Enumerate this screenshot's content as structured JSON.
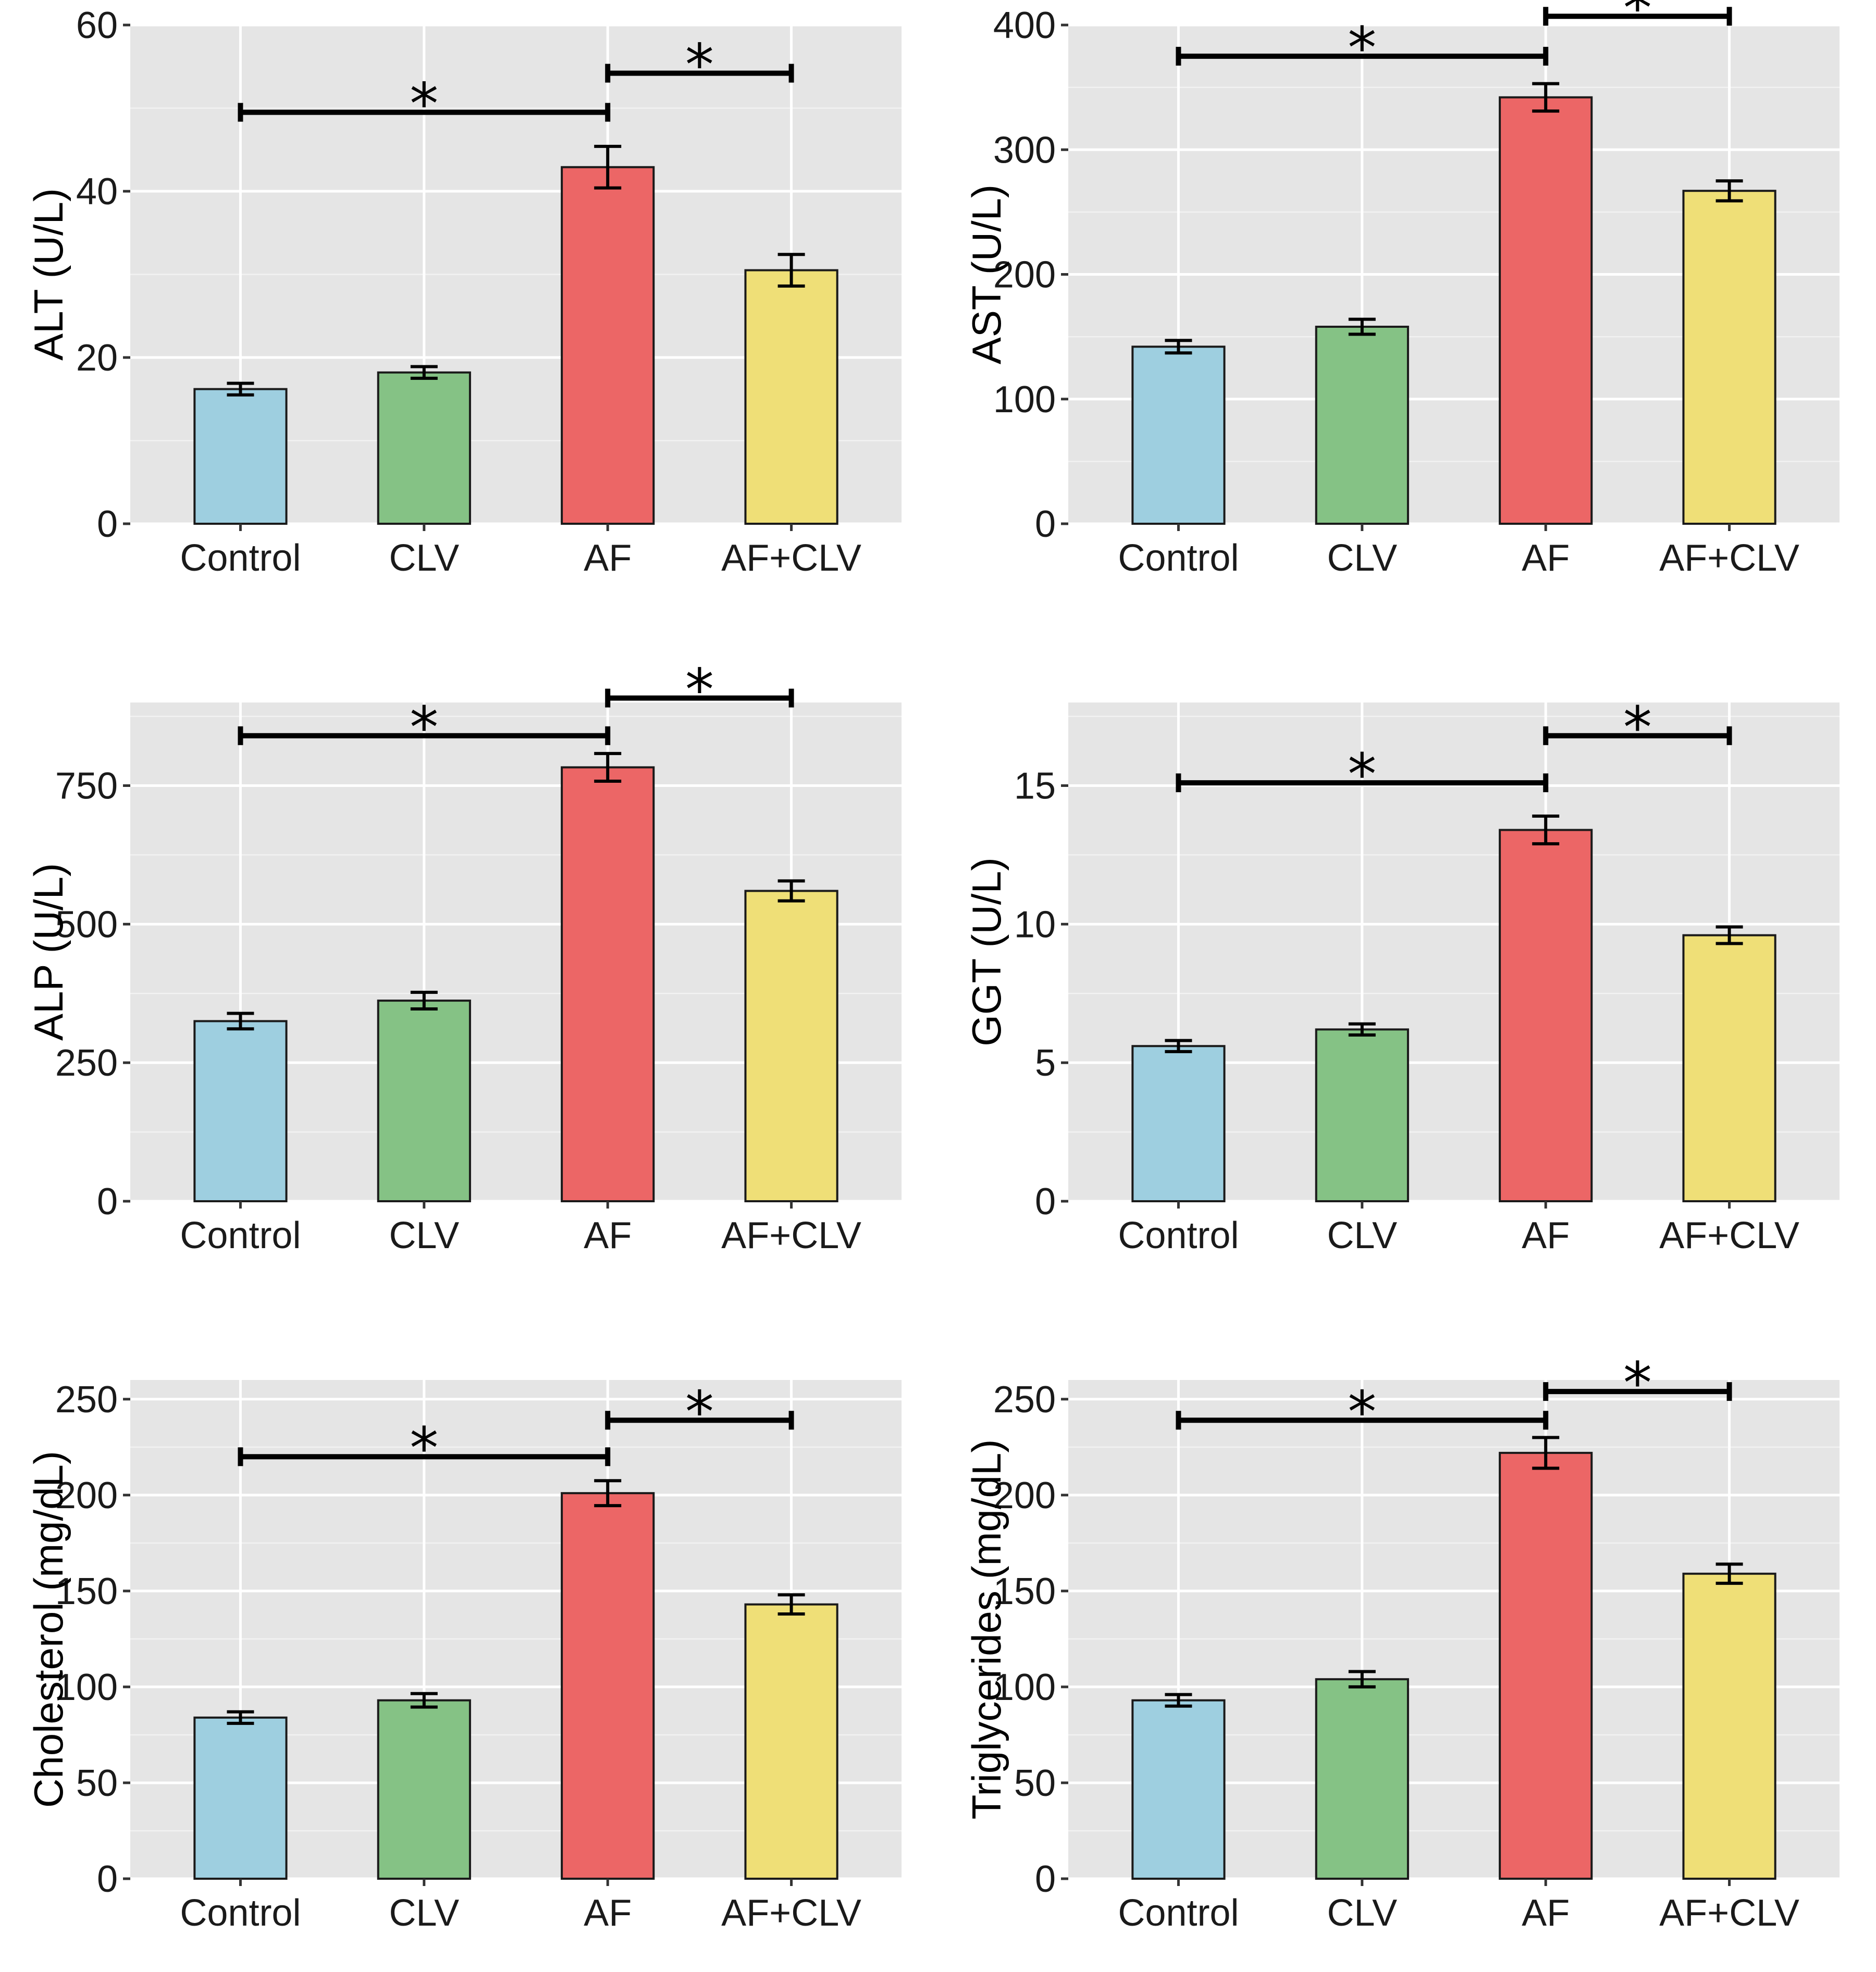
{
  "colors": {
    "Control": "#9ecfe0",
    "CLV": "#85c285",
    "AF": "#ec6666",
    "AF+CLV": "#efdf77"
  },
  "chart_data": [
    {
      "type": "bar",
      "id": "alt",
      "categories": [
        "Control",
        "CLV",
        "AF",
        "AF+CLV"
      ],
      "values": [
        16.2,
        18.2,
        42.9,
        30.5
      ],
      "errors": [
        0.7,
        0.7,
        2.5,
        1.9
      ],
      "ylabel": "ALT (U/L)",
      "ylim": [
        0,
        60
      ],
      "yticks": [
        0,
        20,
        40,
        60
      ],
      "yticklabels": [
        "0",
        "20",
        "40",
        "60"
      ],
      "significance": [
        {
          "from": "Control",
          "to": "AF",
          "y": 49.5,
          "label": "*"
        },
        {
          "from": "AF",
          "to": "AF+CLV",
          "y": 54.2,
          "label": "*"
        }
      ]
    },
    {
      "type": "bar",
      "id": "ast",
      "categories": [
        "Control",
        "CLV",
        "AF",
        "AF+CLV"
      ],
      "values": [
        142,
        158,
        342,
        267
      ],
      "errors": [
        5,
        6,
        11,
        8
      ],
      "ylabel": "AST (U/L)",
      "ylim": [
        0,
        400
      ],
      "yticks": [
        0,
        100,
        200,
        300,
        400
      ],
      "yticklabels": [
        "0",
        "100",
        "200",
        "300",
        "400"
      ],
      "significance": [
        {
          "from": "Control",
          "to": "AF",
          "y": 375,
          "label": "*"
        },
        {
          "from": "AF",
          "to": "AF+CLV",
          "y": 407,
          "label": "*"
        }
      ]
    },
    {
      "type": "bar",
      "id": "alp",
      "categories": [
        "Control",
        "CLV",
        "AF",
        "AF+CLV"
      ],
      "values": [
        325,
        362,
        783,
        560
      ],
      "errors": [
        14,
        15,
        25,
        18
      ],
      "ylabel": "ALP (U/L)",
      "ylim": [
        0,
        900
      ],
      "yticks": [
        0,
        250,
        500,
        750
      ],
      "yticklabels": [
        "0",
        "250",
        "500",
        "750"
      ],
      "significance": [
        {
          "from": "Control",
          "to": "AF",
          "y": 840,
          "label": "*"
        },
        {
          "from": "AF",
          "to": "AF+CLV",
          "y": 908,
          "label": "*"
        }
      ]
    },
    {
      "type": "bar",
      "id": "ggt",
      "categories": [
        "Control",
        "CLV",
        "AF",
        "AF+CLV"
      ],
      "values": [
        5.6,
        6.2,
        13.4,
        9.6
      ],
      "errors": [
        0.2,
        0.2,
        0.5,
        0.3
      ],
      "ylabel": "GGT (U/L)",
      "ylim": [
        0,
        18
      ],
      "yticks": [
        0,
        5,
        10,
        15
      ],
      "yticklabels": [
        "0",
        "5",
        "10",
        "15"
      ],
      "significance": [
        {
          "from": "Control",
          "to": "AF",
          "y": 15.1,
          "label": "*"
        },
        {
          "from": "AF",
          "to": "AF+CLV",
          "y": 16.8,
          "label": "*"
        }
      ]
    },
    {
      "type": "bar",
      "id": "cholesterol",
      "categories": [
        "Control",
        "CLV",
        "AF",
        "AF+CLV"
      ],
      "values": [
        84,
        93,
        201,
        143
      ],
      "errors": [
        3,
        3.5,
        6.5,
        5
      ],
      "ylabel": "Cholesterol (mg/dL)",
      "ylim": [
        0,
        260
      ],
      "yticks": [
        0,
        50,
        100,
        150,
        200,
        250
      ],
      "yticklabels": [
        "0",
        "50",
        "100",
        "150",
        "200",
        "250"
      ],
      "significance": [
        {
          "from": "Control",
          "to": "AF",
          "y": 220,
          "label": "*"
        },
        {
          "from": "AF",
          "to": "AF+CLV",
          "y": 239,
          "label": "*"
        }
      ]
    },
    {
      "type": "bar",
      "id": "triglycerides",
      "categories": [
        "Control",
        "CLV",
        "AF",
        "AF+CLV"
      ],
      "values": [
        93,
        104,
        222,
        159
      ],
      "errors": [
        3,
        4,
        8,
        5
      ],
      "ylabel": "Triglycerides (mg/dL)",
      "ylim": [
        0,
        260
      ],
      "yticks": [
        0,
        50,
        100,
        150,
        200,
        250
      ],
      "yticklabels": [
        "0",
        "50",
        "100",
        "150",
        "200",
        "250"
      ],
      "significance": [
        {
          "from": "Control",
          "to": "AF",
          "y": 239,
          "label": "*"
        },
        {
          "from": "AF",
          "to": "AF+CLV",
          "y": 254,
          "label": "*"
        }
      ]
    }
  ]
}
